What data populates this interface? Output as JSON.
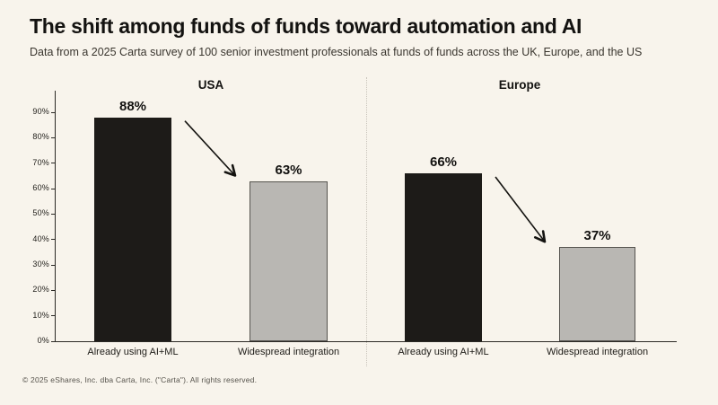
{
  "page": {
    "title": "The shift among funds of funds toward automation and AI",
    "subtitle": "Data from a 2025 Carta survey of 100 senior investment professionals at funds of funds across the UK, Europe, and the US",
    "footer": "© 2025 eShares, Inc. dba Carta, Inc. (\"Carta\"). All rights reserved."
  },
  "colors": {
    "background": "#f8f4ec",
    "bar_primary": "#1d1b18",
    "bar_secondary": "#b9b7b3",
    "bar_secondary_border": "#56544f",
    "axis": "#2b2925",
    "arrow": "#141310",
    "text": "#131210"
  },
  "chart_data": {
    "type": "bar",
    "groups": [
      {
        "title": "USA",
        "categories": [
          "Already using AI+ML",
          "Widespread integration"
        ],
        "values": [
          88,
          63
        ]
      },
      {
        "title": "Europe",
        "categories": [
          "Already using AI+ML",
          "Widespread integration"
        ],
        "values": [
          66,
          37
        ]
      }
    ],
    "value_suffix": "%",
    "ytick_suffix": "%",
    "yticks": [
      0,
      10,
      20,
      30,
      40,
      50,
      60,
      70,
      80,
      90
    ],
    "ylim": [
      0,
      100
    ],
    "grid": "off",
    "legend": "none",
    "annotations": [
      {
        "type": "decline-arrow",
        "group": "USA",
        "from": 88,
        "to": 63
      },
      {
        "type": "decline-arrow",
        "group": "Europe",
        "from": 66,
        "to": 37
      }
    ]
  }
}
